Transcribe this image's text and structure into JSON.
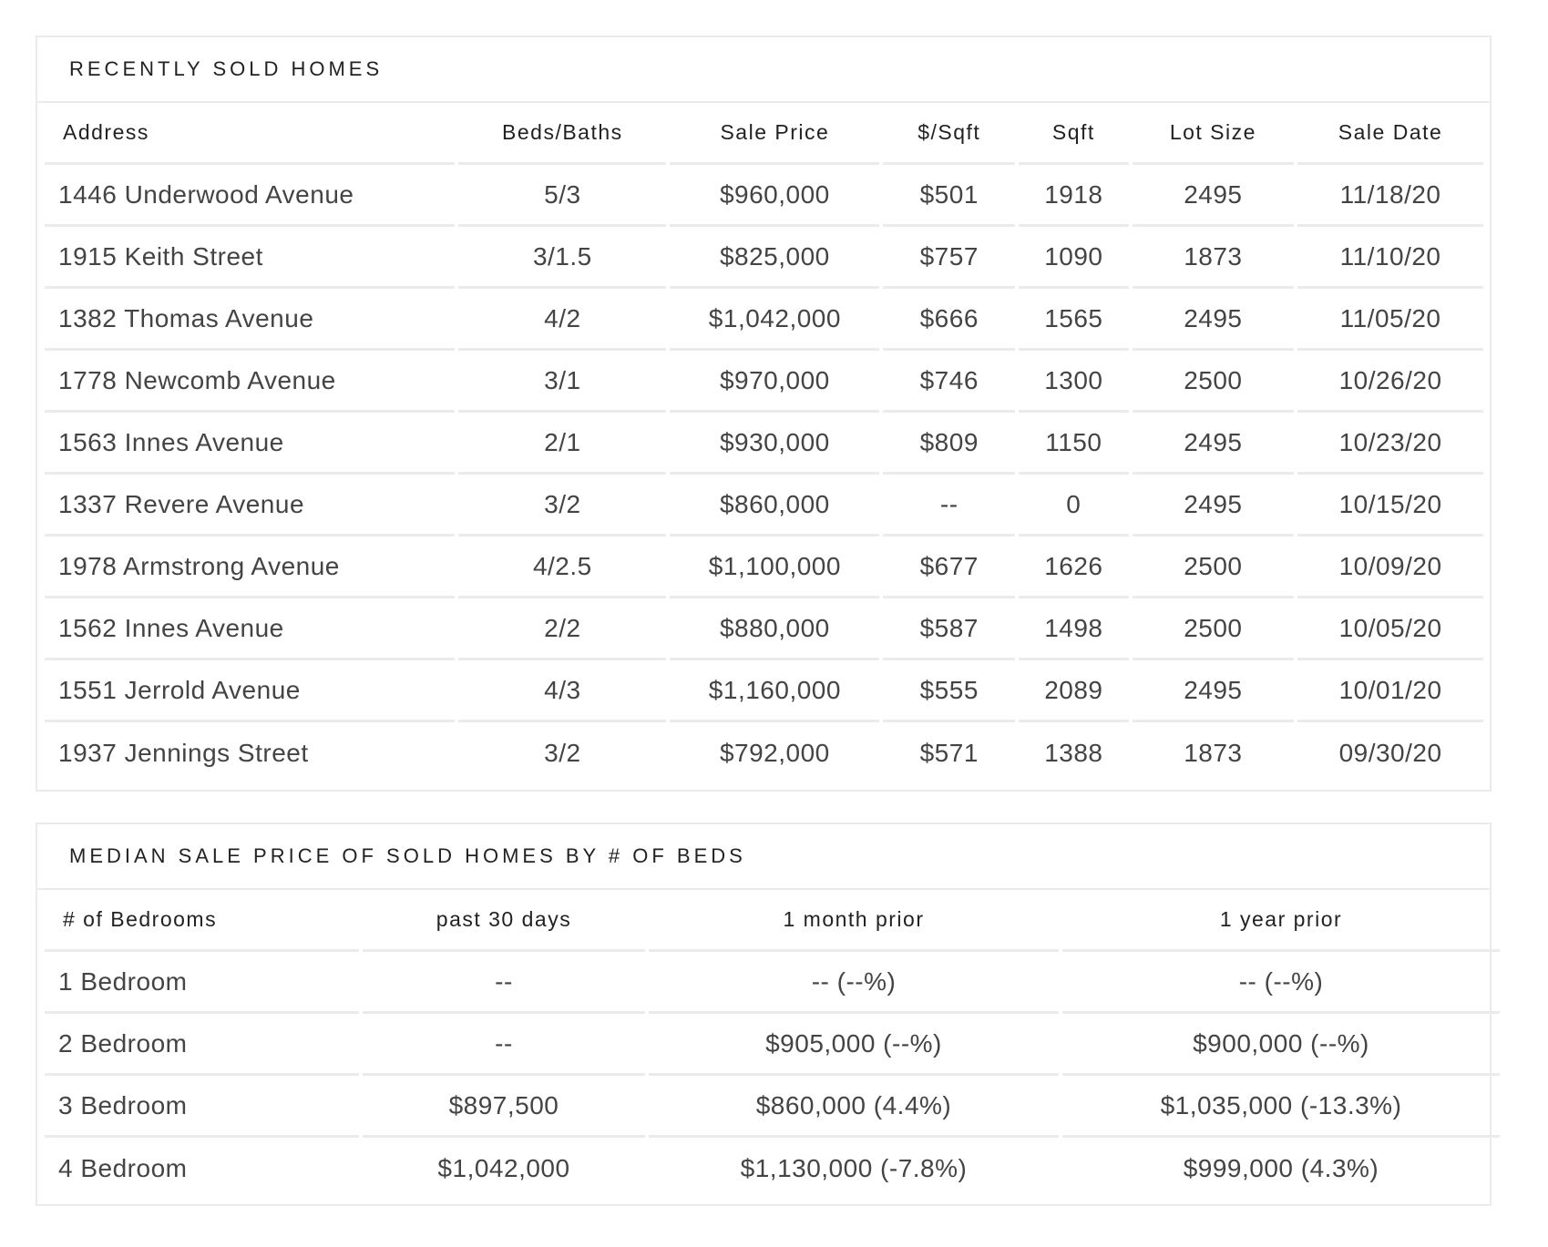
{
  "recently_sold": {
    "title": "RECENTLY SOLD HOMES",
    "columns": [
      "Address",
      "Beds/Baths",
      "Sale Price",
      "$/Sqft",
      "Sqft",
      "Lot Size",
      "Sale Date"
    ],
    "rows": [
      [
        "1446 Underwood Avenue",
        "5/3",
        "$960,000",
        "$501",
        "1918",
        "2495",
        "11/18/20"
      ],
      [
        "1915 Keith Street",
        "3/1.5",
        "$825,000",
        "$757",
        "1090",
        "1873",
        "11/10/20"
      ],
      [
        "1382 Thomas Avenue",
        "4/2",
        "$1,042,000",
        "$666",
        "1565",
        "2495",
        "11/05/20"
      ],
      [
        "1778 Newcomb Avenue",
        "3/1",
        "$970,000",
        "$746",
        "1300",
        "2500",
        "10/26/20"
      ],
      [
        "1563 Innes Avenue",
        "2/1",
        "$930,000",
        "$809",
        "1150",
        "2495",
        "10/23/20"
      ],
      [
        "1337 Revere Avenue",
        "3/2",
        "$860,000",
        "--",
        "0",
        "2495",
        "10/15/20"
      ],
      [
        "1978 Armstrong Avenue",
        "4/2.5",
        "$1,100,000",
        "$677",
        "1626",
        "2500",
        "10/09/20"
      ],
      [
        "1562 Innes Avenue",
        "2/2",
        "$880,000",
        "$587",
        "1498",
        "2500",
        "10/05/20"
      ],
      [
        "1551 Jerrold Avenue",
        "4/3",
        "$1,160,000",
        "$555",
        "2089",
        "2495",
        "10/01/20"
      ],
      [
        "1937 Jennings Street",
        "3/2",
        "$792,000",
        "$571",
        "1388",
        "1873",
        "09/30/20"
      ]
    ]
  },
  "median_price": {
    "title": "MEDIAN SALE PRICE OF SOLD HOMES BY # OF BEDS",
    "columns": [
      "# of Bedrooms",
      "past 30 days",
      "1 month prior",
      "1 year prior"
    ],
    "rows": [
      [
        "1 Bedroom",
        "--",
        "-- (--%)",
        "-- (--%)"
      ],
      [
        "2 Bedroom",
        "--",
        "$905,000 (--%)",
        "$900,000 (--%)"
      ],
      [
        "3 Bedroom",
        "$897,500",
        "$860,000 (4.4%)",
        "$1,035,000 (-13.3%)"
      ],
      [
        "4 Bedroom",
        "$1,042,000",
        "$1,130,000 (-7.8%)",
        "$999,000 (4.3%)"
      ]
    ]
  }
}
